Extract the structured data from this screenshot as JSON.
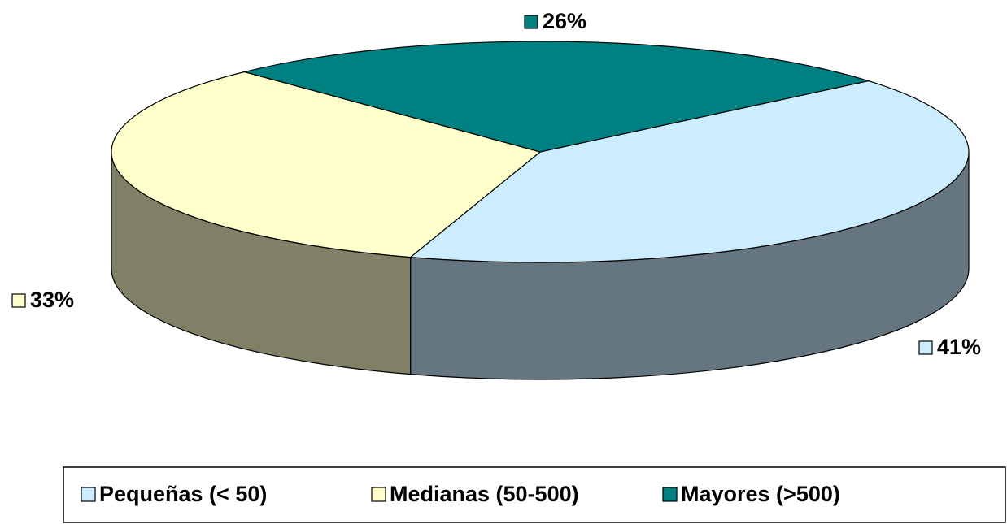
{
  "chart_data": {
    "type": "pie3d",
    "categories": [
      "Pequeñas (< 50)",
      "Medianas (50-500)",
      "Mayores (>500)"
    ],
    "values": [
      41,
      33,
      26
    ],
    "value_labels": [
      "41%",
      "33%",
      "26%"
    ],
    "colors": [
      "#ccecff",
      "#ffffcc",
      "#008080"
    ],
    "legend": "bottom"
  }
}
